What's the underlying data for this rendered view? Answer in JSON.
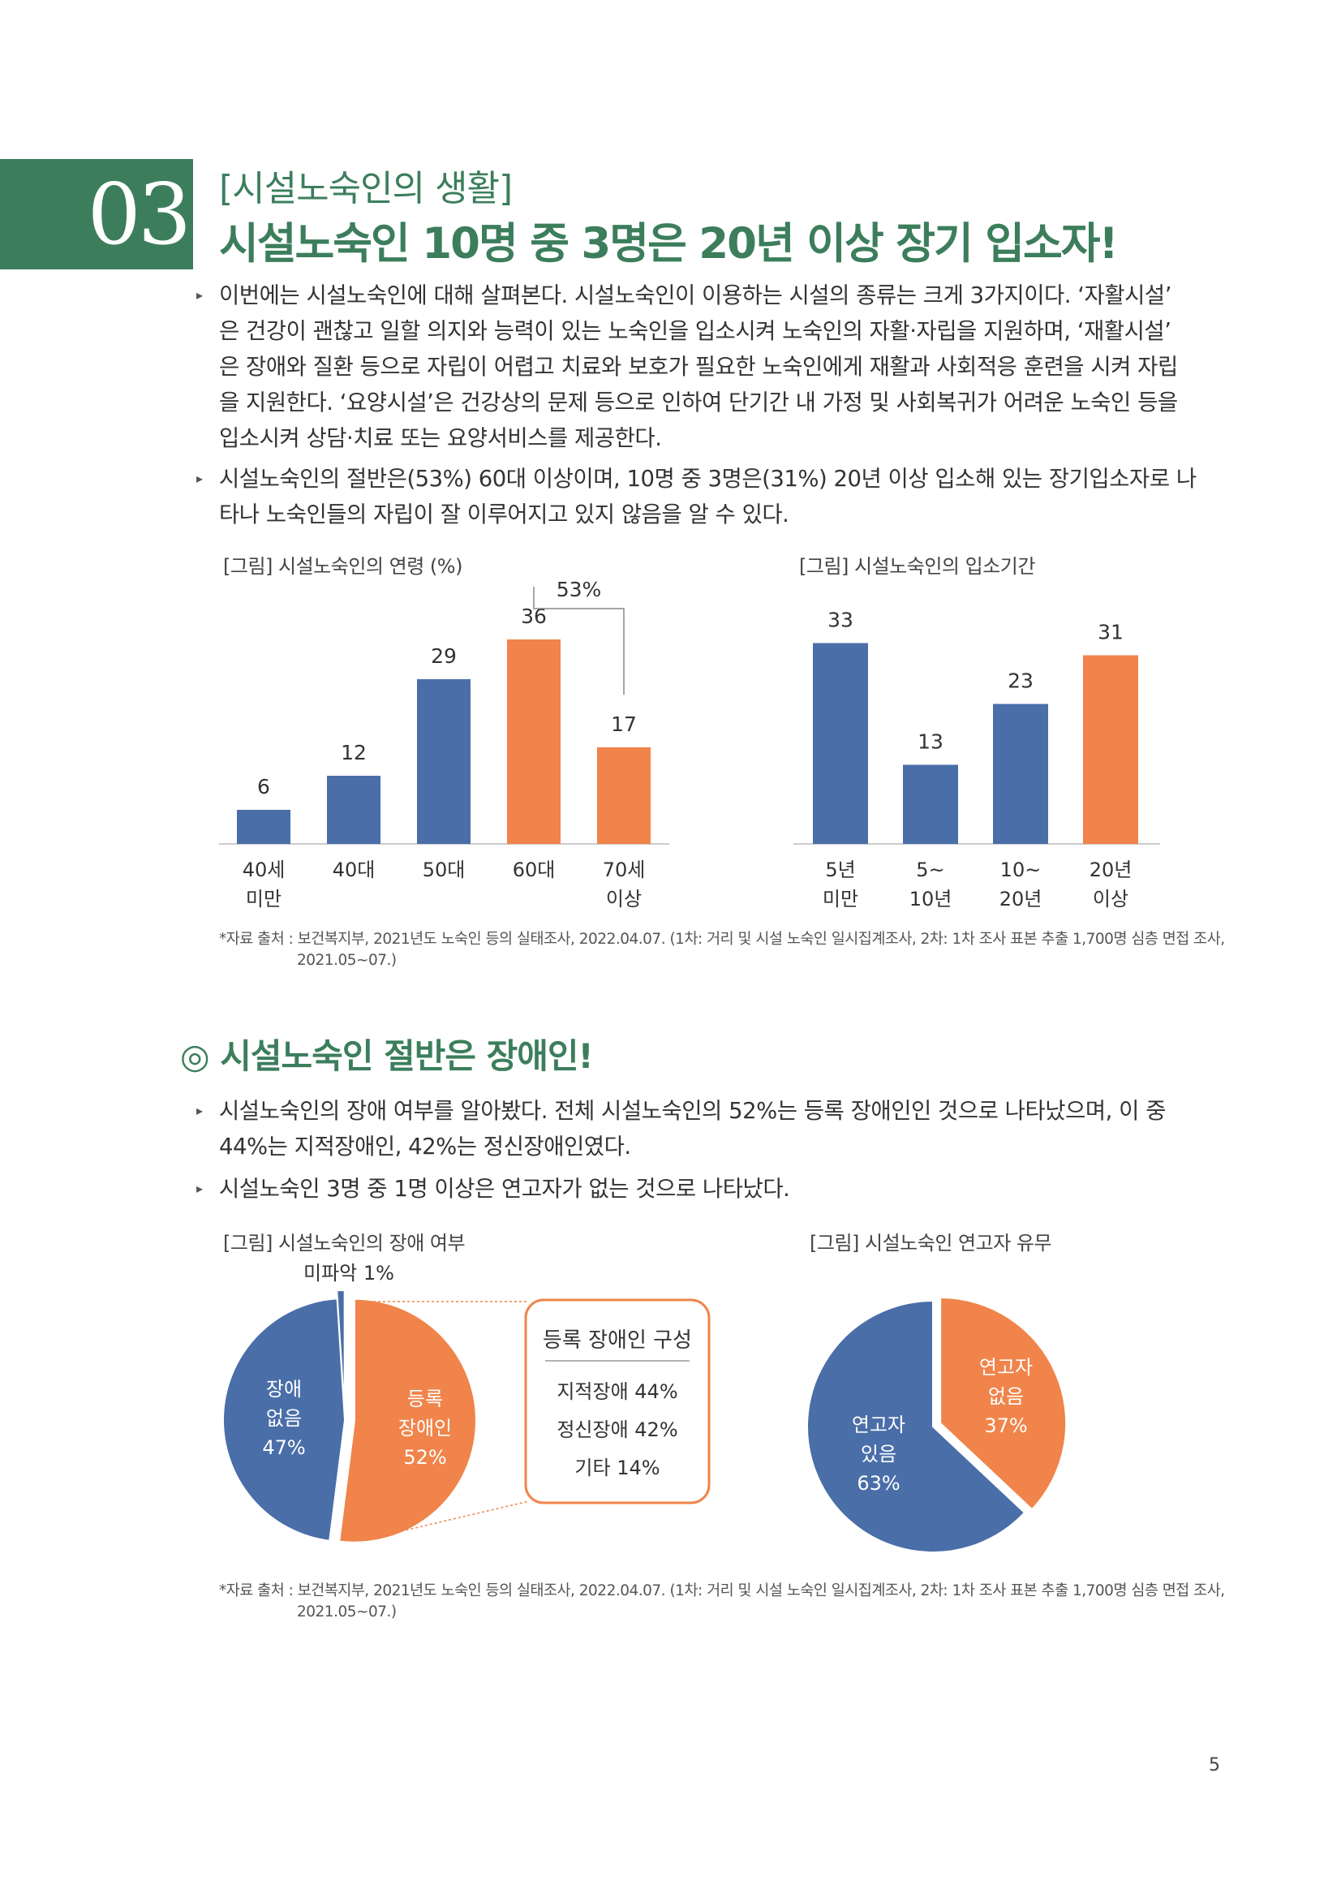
{
  "header": {
    "number": "03",
    "subtitle": "[시설노숙인의 생활]",
    "title": "시설노숙인 10명 중 3명은 20년 이상 장기 입소자!"
  },
  "paragraphs1": [
    {
      "lines": [
        "이번에는 시설노숙인에 대해 살펴본다. 시설노숙인이 이용하는 시설의 종류는 크게 3가지이다. ‘자활시설’",
        "은 건강이 괜찮고 일할 의지와 능력이 있는 노숙인을 입소시켜 노숙인의 자활·자립을 지원하며, ‘재활시설’",
        "은 장애와 질환 등으로 자립이 어렵고 치료와 보호가 필요한 노숙인에게 재활과 사회적응 훈련을 시켜 자립",
        "을 지원한다. ‘요양시설’은 건강상의 문제 등으로 인하여 단기간 내 가정 및 사회복귀가 어려운 노숙인 등을",
        "입소시켜 상담·치료 또는 요양서비스를 제공한다."
      ]
    },
    {
      "lines": [
        "시설노숙인의 절반은(53%) 60대 이상이며, 10명 중 3명은(31%) 20년 이상 입소해 있는 장기입소자로 나",
        "타나 노숙인들의 자립이 잘 이루어지고 있지 않음을 알 수 있다."
      ]
    }
  ],
  "figures": {
    "age_title": "[그림] 시설노숙인의 연령 (%)",
    "stay_title": "[그림] 시설노숙인의 입소기간",
    "disability_title": "[그림] 시설노숙인의 장애 여부",
    "family_title": "[그림] 시설노숙인 연고자 유무"
  },
  "source1": {
    "line1": "*자료 출처 : 보건복지부, 2021년도 노숙인 등의 실태조사, 2022.04.07. (1차: 거리 및 시설 노숙인 일시집계조사, 2차: 1차 조사 표본 추출 1,700명 심층 면접 조사,",
    "line2": "2021.05~07.)"
  },
  "section2": {
    "title": "◎ 시설노숙인 절반은 장애인!",
    "paragraphs": [
      {
        "lines": [
          "시설노숙인의 장애 여부를 알아봤다. 전체 시설노숙인의 52%는 등록 장애인인 것으로 나타났으며, 이 중",
          "44%는 지적장애인, 42%는 정신장애인였다."
        ]
      },
      {
        "lines": [
          "시설노숙인 3명 중 1명 이상은 연고자가 없는 것으로 나타났다."
        ]
      }
    ]
  },
  "source2": {
    "line1": "*자료 출처 : 보건복지부, 2021년도 노숙인 등의 실태조사, 2022.04.07. (1차: 거리 및 시설 노숙인 일시집계조사, 2차: 1차 조사 표본 추출 1,700명 심층 면접 조사,",
    "line2": "2021.05~07.)"
  },
  "page_number": "5",
  "colors": {
    "blue": "#4a6ea8",
    "orange": "#f0844a",
    "green": "#3c7e5c",
    "axis": "#cccccc"
  },
  "bullet_icon": "triangle-bullet-icon",
  "chart_data": [
    {
      "type": "bar",
      "categories": [
        [
          "40세",
          "미만"
        ],
        [
          "40대"
        ],
        [
          "50대"
        ],
        [
          "60대"
        ],
        [
          "70세",
          "이상"
        ]
      ],
      "values": [
        6,
        12,
        29,
        36,
        17
      ],
      "highlight": [
        false,
        false,
        false,
        true,
        true
      ],
      "bracket_label": "53%",
      "ylim": [
        0,
        45
      ]
    },
    {
      "type": "bar",
      "categories": [
        [
          "5년",
          "미만"
        ],
        [
          "5~",
          "10년"
        ],
        [
          "10~",
          "20년"
        ],
        [
          "20년",
          "이상"
        ]
      ],
      "values": [
        33,
        13,
        23,
        31
      ],
      "highlight": [
        false,
        false,
        false,
        true
      ],
      "ylim": [
        0,
        42
      ]
    },
    {
      "type": "pie",
      "slices": [
        {
          "label": [
            "등록",
            "장애인",
            "52%"
          ],
          "value": 52,
          "color": "orange"
        },
        {
          "label": [
            "장애",
            "없음",
            "47%"
          ],
          "value": 47,
          "color": "blue"
        },
        {
          "label": [
            "미파악 1%"
          ],
          "value": 1,
          "color": "blue"
        }
      ],
      "callout": {
        "title": "등록 장애인 구성",
        "items": [
          "지적장애 44%",
          "정신장애 42%",
          "기타 14%"
        ]
      }
    },
    {
      "type": "pie",
      "slices": [
        {
          "label": [
            "연고자",
            "없음",
            "37%"
          ],
          "value": 37,
          "color": "orange"
        },
        {
          "label": [
            "연고자",
            "있음",
            "63%"
          ],
          "value": 63,
          "color": "blue"
        }
      ]
    }
  ]
}
